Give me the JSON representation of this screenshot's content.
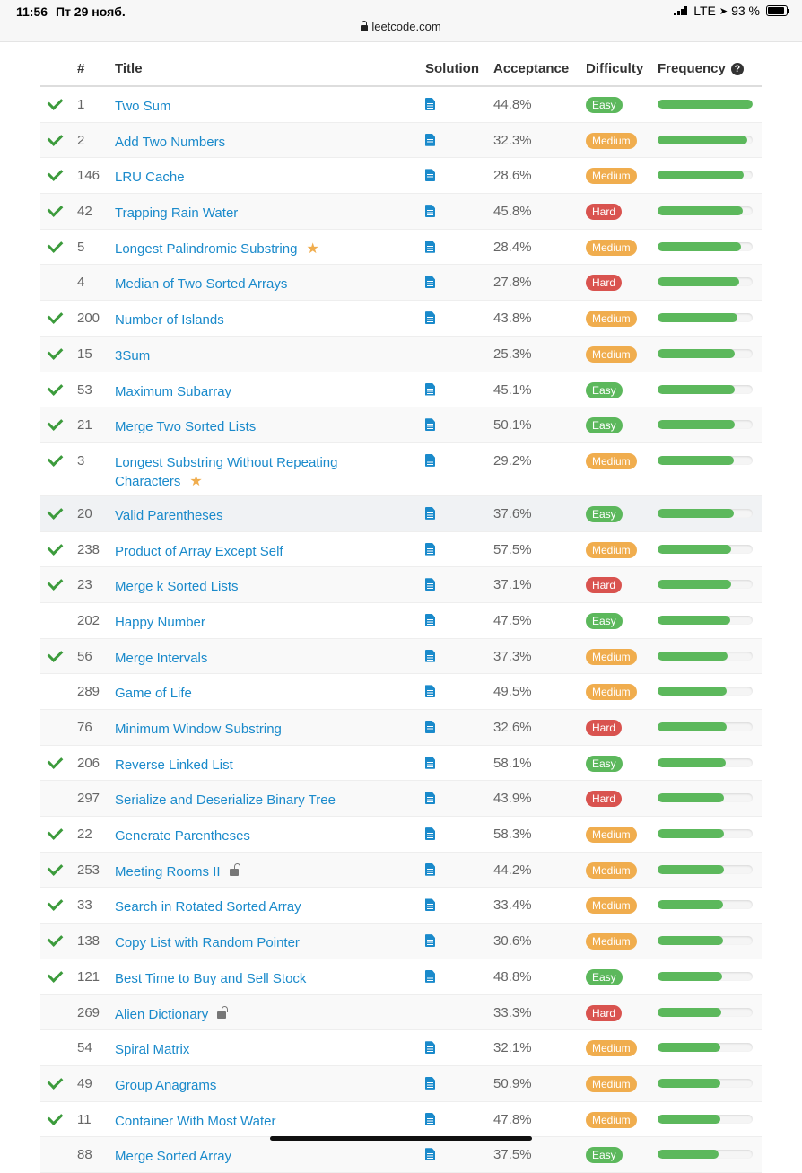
{
  "status": {
    "time": "11:56",
    "date": "Пт 29 нояб.",
    "network": "LTE",
    "battery": "93 %",
    "url": "leetcode.com"
  },
  "table": {
    "headers": {
      "num": "#",
      "title": "Title",
      "solution": "Solution",
      "acceptance": "Acceptance",
      "difficulty": "Difficulty",
      "frequency": "Frequency"
    },
    "rows": [
      {
        "solved": true,
        "num": "1",
        "title": "Two Sum",
        "solution": true,
        "acceptance": "44.8%",
        "difficulty": "Easy",
        "frequency": 1.0
      },
      {
        "solved": true,
        "num": "2",
        "title": "Add Two Numbers",
        "solution": true,
        "acceptance": "32.3%",
        "difficulty": "Medium",
        "frequency": 0.94
      },
      {
        "solved": true,
        "num": "146",
        "title": "LRU Cache",
        "solution": true,
        "acceptance": "28.6%",
        "difficulty": "Medium",
        "frequency": 0.91
      },
      {
        "solved": true,
        "num": "42",
        "title": "Trapping Rain Water",
        "solution": true,
        "acceptance": "45.8%",
        "difficulty": "Hard",
        "frequency": 0.9
      },
      {
        "solved": true,
        "num": "5",
        "title": "Longest Palindromic Substring",
        "star": true,
        "solution": true,
        "acceptance": "28.4%",
        "difficulty": "Medium",
        "frequency": 0.88
      },
      {
        "solved": false,
        "num": "4",
        "title": "Median of Two Sorted Arrays",
        "solution": true,
        "acceptance": "27.8%",
        "difficulty": "Hard",
        "frequency": 0.86
      },
      {
        "solved": true,
        "num": "200",
        "title": "Number of Islands",
        "solution": true,
        "acceptance": "43.8%",
        "difficulty": "Medium",
        "frequency": 0.84
      },
      {
        "solved": true,
        "num": "15",
        "title": "3Sum",
        "solution": false,
        "acceptance": "25.3%",
        "difficulty": "Medium",
        "frequency": 0.81
      },
      {
        "solved": true,
        "num": "53",
        "title": "Maximum Subarray",
        "solution": true,
        "acceptance": "45.1%",
        "difficulty": "Easy",
        "frequency": 0.81
      },
      {
        "solved": true,
        "num": "21",
        "title": "Merge Two Sorted Lists",
        "solution": true,
        "acceptance": "50.1%",
        "difficulty": "Easy",
        "frequency": 0.81
      },
      {
        "solved": true,
        "num": "3",
        "title": "Longest Substring Without Repeating Characters",
        "star": true,
        "solution": true,
        "acceptance": "29.2%",
        "difficulty": "Medium",
        "frequency": 0.8,
        "tall": true
      },
      {
        "solved": true,
        "num": "20",
        "title": "Valid Parentheses",
        "solution": true,
        "acceptance": "37.6%",
        "difficulty": "Easy",
        "frequency": 0.8,
        "hover": true
      },
      {
        "solved": true,
        "num": "238",
        "title": "Product of Array Except Self",
        "solution": true,
        "acceptance": "57.5%",
        "difficulty": "Medium",
        "frequency": 0.77
      },
      {
        "solved": true,
        "num": "23",
        "title": "Merge k Sorted Lists",
        "solution": true,
        "acceptance": "37.1%",
        "difficulty": "Hard",
        "frequency": 0.77
      },
      {
        "solved": false,
        "num": "202",
        "title": "Happy Number",
        "solution": true,
        "acceptance": "47.5%",
        "difficulty": "Easy",
        "frequency": 0.76
      },
      {
        "solved": true,
        "num": "56",
        "title": "Merge Intervals",
        "solution": true,
        "acceptance": "37.3%",
        "difficulty": "Medium",
        "frequency": 0.74
      },
      {
        "solved": false,
        "num": "289",
        "title": "Game of Life",
        "solution": true,
        "acceptance": "49.5%",
        "difficulty": "Medium",
        "frequency": 0.73
      },
      {
        "solved": false,
        "num": "76",
        "title": "Minimum Window Substring",
        "solution": true,
        "acceptance": "32.6%",
        "difficulty": "Hard",
        "frequency": 0.73
      },
      {
        "solved": true,
        "num": "206",
        "title": "Reverse Linked List",
        "solution": true,
        "acceptance": "58.1%",
        "difficulty": "Easy",
        "frequency": 0.72
      },
      {
        "solved": false,
        "num": "297",
        "title": "Serialize and Deserialize Binary Tree",
        "solution": true,
        "acceptance": "43.9%",
        "difficulty": "Hard",
        "frequency": 0.7
      },
      {
        "solved": true,
        "num": "22",
        "title": "Generate Parentheses",
        "solution": true,
        "acceptance": "58.3%",
        "difficulty": "Medium",
        "frequency": 0.7
      },
      {
        "solved": true,
        "num": "253",
        "title": "Meeting Rooms II",
        "locked": true,
        "solution": true,
        "acceptance": "44.2%",
        "difficulty": "Medium",
        "frequency": 0.7
      },
      {
        "solved": true,
        "num": "33",
        "title": "Search in Rotated Sorted Array",
        "solution": true,
        "acceptance": "33.4%",
        "difficulty": "Medium",
        "frequency": 0.69
      },
      {
        "solved": true,
        "num": "138",
        "title": "Copy List with Random Pointer",
        "solution": true,
        "acceptance": "30.6%",
        "difficulty": "Medium",
        "frequency": 0.69
      },
      {
        "solved": true,
        "num": "121",
        "title": "Best Time to Buy and Sell Stock",
        "solution": true,
        "acceptance": "48.8%",
        "difficulty": "Easy",
        "frequency": 0.68
      },
      {
        "solved": false,
        "num": "269",
        "title": "Alien Dictionary",
        "locked": true,
        "solution": false,
        "acceptance": "33.3%",
        "difficulty": "Hard",
        "frequency": 0.67
      },
      {
        "solved": false,
        "num": "54",
        "title": "Spiral Matrix",
        "solution": true,
        "acceptance": "32.1%",
        "difficulty": "Medium",
        "frequency": 0.66
      },
      {
        "solved": true,
        "num": "49",
        "title": "Group Anagrams",
        "solution": true,
        "acceptance": "50.9%",
        "difficulty": "Medium",
        "frequency": 0.66
      },
      {
        "solved": true,
        "num": "11",
        "title": "Container With Most Water",
        "solution": true,
        "acceptance": "47.8%",
        "difficulty": "Medium",
        "frequency": 0.66
      },
      {
        "solved": false,
        "num": "88",
        "title": "Merge Sorted Array",
        "solution": true,
        "acceptance": "37.5%",
        "difficulty": "Easy",
        "frequency": 0.64
      }
    ]
  }
}
